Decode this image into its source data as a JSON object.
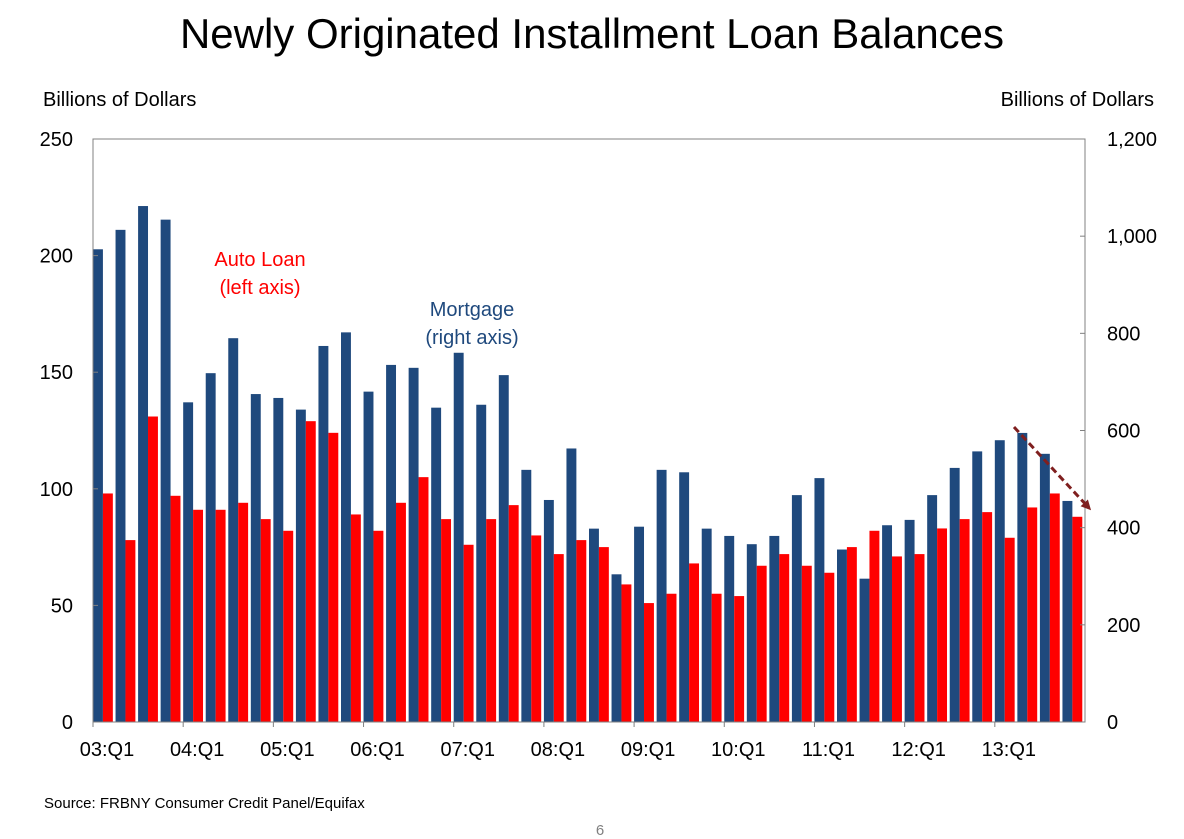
{
  "title": "Newly Originated Installment Loan Balances",
  "left_axis_label": "Billions of Dollars",
  "right_axis_label": "Billions of Dollars",
  "source": "Source: FRBNY Consumer Credit Panel/Equifax",
  "page_number": "6",
  "annotations": {
    "auto_line1": "Auto Loan",
    "auto_line2": "(left axis)",
    "mortgage_line1": "Mortgage",
    "mortgage_line2": "(right axis)"
  },
  "colors": {
    "mortgage": "#1f497d",
    "auto": "#ff0000",
    "arrow": "#7f1f1f"
  },
  "chart_data": {
    "type": "bar",
    "title": "Newly Originated Installment Loan Balances",
    "left_axis": {
      "label": "Billions of Dollars",
      "ylim": [
        0,
        250
      ],
      "ticks": [
        "0",
        "50",
        "100",
        "150",
        "200",
        "250"
      ]
    },
    "right_axis": {
      "label": "Billions of Dollars",
      "ylim": [
        0,
        1200
      ],
      "ticks": [
        "0",
        "200",
        "400",
        "600",
        "800",
        "1,000",
        "1,200"
      ]
    },
    "x_tick_labels": [
      "03:Q1",
      "04:Q1",
      "05:Q1",
      "06:Q1",
      "07:Q1",
      "08:Q1",
      "09:Q1",
      "10:Q1",
      "11:Q1",
      "12:Q1",
      "13:Q1"
    ],
    "categories": [
      "03:Q1",
      "03:Q2",
      "03:Q3",
      "03:Q4",
      "04:Q1",
      "04:Q2",
      "04:Q3",
      "04:Q4",
      "05:Q1",
      "05:Q2",
      "05:Q3",
      "05:Q4",
      "06:Q1",
      "06:Q2",
      "06:Q3",
      "06:Q4",
      "07:Q1",
      "07:Q2",
      "07:Q3",
      "07:Q4",
      "08:Q1",
      "08:Q2",
      "08:Q3",
      "08:Q4",
      "09:Q1",
      "09:Q2",
      "09:Q3",
      "09:Q4",
      "10:Q1",
      "10:Q2",
      "10:Q3",
      "10:Q4",
      "11:Q1",
      "11:Q2",
      "11:Q3",
      "11:Q4",
      "12:Q1",
      "12:Q2",
      "12:Q3",
      "12:Q4",
      "13:Q1",
      "13:Q2",
      "13:Q3",
      "13:Q4"
    ],
    "series": [
      {
        "name": "Mortgage",
        "axis": "right",
        "values": [
          973,
          1013,
          1062,
          1034,
          658,
          718,
          790,
          675,
          667,
          643,
          774,
          802,
          680,
          735,
          729,
          647,
          760,
          653,
          714,
          519,
          457,
          563,
          398,
          304,
          402,
          519,
          514,
          398,
          383,
          366,
          383,
          467,
          502,
          355,
          295,
          405,
          416,
          467,
          523,
          557,
          580,
          595,
          552,
          455
        ]
      },
      {
        "name": "Auto Loan",
        "axis": "left",
        "values": [
          98,
          78,
          131,
          97,
          91,
          91,
          94,
          87,
          82,
          129,
          124,
          89,
          82,
          94,
          105,
          87,
          76,
          87,
          93,
          80,
          72,
          78,
          75,
          59,
          51,
          55,
          68,
          55,
          54,
          67,
          72,
          67,
          64,
          75,
          82,
          71,
          72,
          83,
          87,
          90,
          79,
          92,
          98,
          88
        ]
      }
    ],
    "grid": false,
    "legend": "none"
  }
}
